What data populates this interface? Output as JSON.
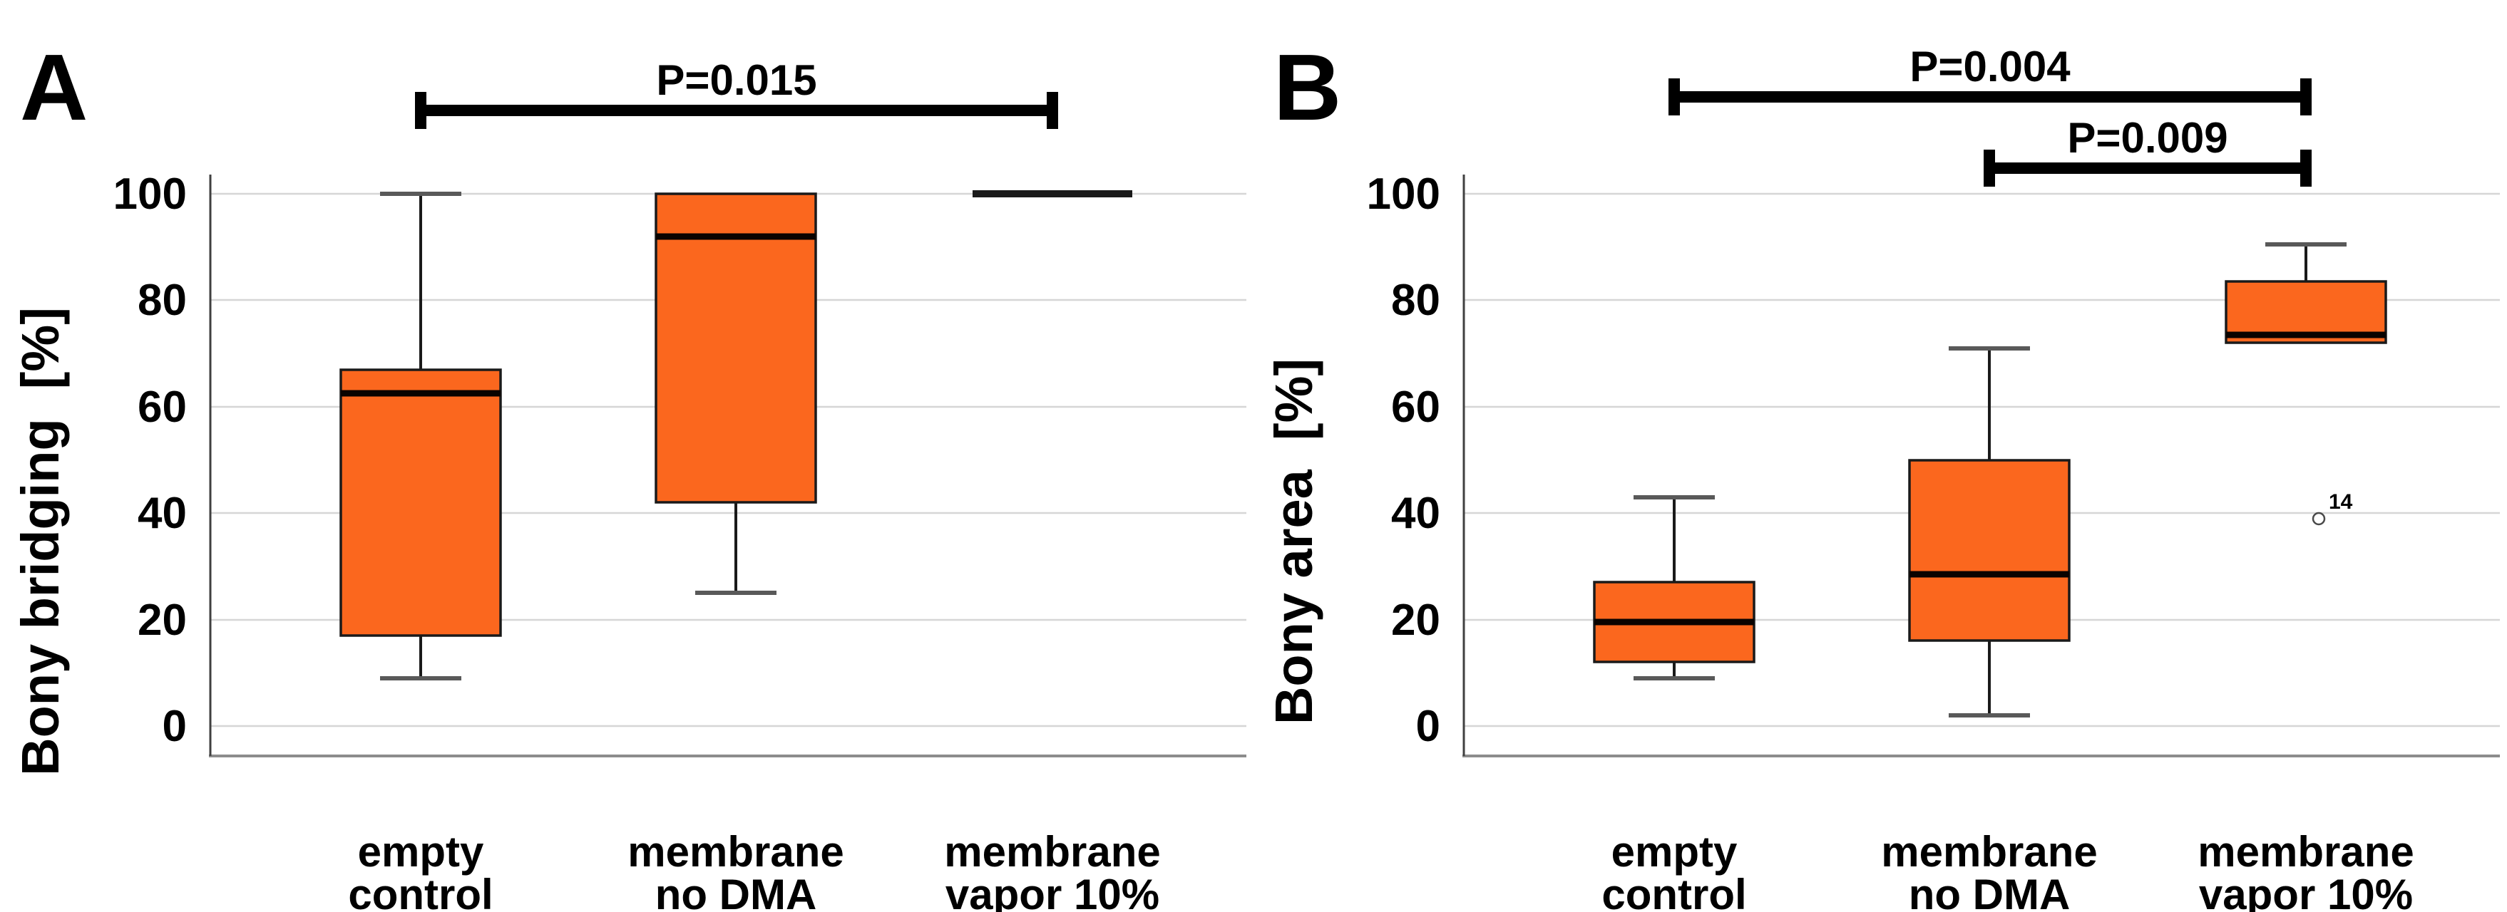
{
  "figure": {
    "description_visible_text_only": "Two box plots comparing three groups",
    "panel_letters": [
      "A",
      "B"
    ]
  },
  "colors": {
    "background": "#FFFFFF",
    "box_fill": "#FB671E",
    "box_stroke": "#1A1A1A",
    "median": "#0A0300",
    "whisker": "#1A1A1A",
    "whisker_cap": "#595959",
    "gridline": "#D6D6D6",
    "y_spine": "#404040",
    "x_axis": "#8C8C8C",
    "text": "#000000",
    "outlier_stroke": "#4A4A4A",
    "outlier_fill": "#FFFFFF"
  },
  "chart_data": [
    {
      "type": "box",
      "panel_label": "A",
      "title": "",
      "xlabel": "",
      "ylabel": "Bony bridging  [%]",
      "categories": [
        "empty control",
        "membrane no DMA",
        "membrane vapor 10%"
      ],
      "yticks": [
        0,
        20,
        40,
        60,
        80,
        100
      ],
      "ylim": [
        0,
        105
      ],
      "grid": true,
      "legend": false,
      "series": [
        {
          "category": "empty control",
          "label_lines": [
            "empty",
            "control"
          ],
          "min": 9,
          "q1": 17,
          "median": 62.5,
          "q3": 67,
          "max": 100
        },
        {
          "category": "membrane no DMA",
          "label_lines": [
            "membrane",
            "no DMA"
          ],
          "min": 25,
          "q1": 42,
          "median": 92,
          "q3": 100,
          "max": 100
        },
        {
          "category": "membrane vapor 10%",
          "label_lines": [
            "membrane",
            "vapor 10%"
          ],
          "min": 100,
          "q1": 100,
          "median": 100,
          "q3": 100,
          "max": 100
        }
      ],
      "outliers": [],
      "significance": [
        {
          "label": "P=0.015",
          "from": "empty control",
          "to": "membrane vapor 10%"
        }
      ]
    },
    {
      "type": "box",
      "panel_label": "B",
      "title": "",
      "xlabel": "",
      "ylabel": "Bony area  [%]",
      "categories": [
        "empty control",
        "membrane no DMA",
        "membrane vapor 10%"
      ],
      "yticks": [
        0,
        20,
        40,
        60,
        80,
        100
      ],
      "ylim": [
        0,
        105
      ],
      "grid": true,
      "legend": false,
      "series": [
        {
          "category": "empty control",
          "label_lines": [
            "empty",
            "control"
          ],
          "min": 9,
          "q1": 12,
          "median": 19.5,
          "q3": 27,
          "max": 43
        },
        {
          "category": "membrane no DMA",
          "label_lines": [
            "membrane",
            "no DMA"
          ],
          "min": 2,
          "q1": 16,
          "median": 28.5,
          "q3": 50,
          "max": 71
        },
        {
          "category": "membrane vapor 10%",
          "label_lines": [
            "membrane",
            "vapor 10%"
          ],
          "min": 72,
          "q1": 72,
          "median": 73.5,
          "q3": 83.5,
          "max": 90.5
        }
      ],
      "outliers": [
        {
          "category": "membrane vapor 10%",
          "value": 39,
          "label": "14"
        }
      ],
      "significance": [
        {
          "label": "P=0.004",
          "from": "empty control",
          "to": "membrane vapor 10%"
        },
        {
          "label": "P=0.009",
          "from": "membrane no DMA",
          "to": "membrane vapor 10%"
        }
      ]
    }
  ]
}
